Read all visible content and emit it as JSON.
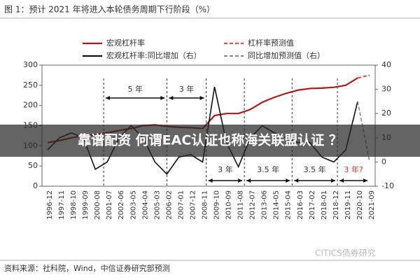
{
  "chart_data": {
    "type": "line",
    "title": "图 1：预计 2021 年将进入本轮债务周期下行阶段（%）",
    "categories": [
      "1996-12",
      "1997-11",
      "1998-10",
      "1999-09",
      "2000-08",
      "2001-07",
      "2002-06",
      "2003-05",
      "2004-04",
      "2005-03",
      "2006-02",
      "2007-01",
      "2007-12",
      "2008-11",
      "2009-10",
      "2010-09",
      "2011-08",
      "2012-07",
      "2013-06",
      "2014-05",
      "2015-04",
      "2016-03",
      "2017-02",
      "2018-01",
      "2018-12",
      "2019-11",
      "2020-10",
      "2021-09"
    ],
    "series": [
      {
        "name": "宏观杠杆率",
        "color": "#a61c1c",
        "dash": false,
        "axis": "y",
        "values": [
          108,
          113,
          120,
          125,
          128,
          132,
          138,
          143,
          150,
          152,
          148,
          146,
          145,
          143,
          175,
          180,
          180,
          190,
          208,
          220,
          230,
          238,
          242,
          243,
          245,
          250,
          268,
          null
        ]
      },
      {
        "name": "杠杆率预测值",
        "color": "#d9534f",
        "dash": true,
        "axis": "y",
        "values": [
          null,
          null,
          null,
          null,
          null,
          null,
          null,
          null,
          null,
          null,
          null,
          null,
          null,
          null,
          null,
          null,
          null,
          null,
          null,
          null,
          null,
          null,
          null,
          null,
          null,
          null,
          268,
          275
        ]
      },
      {
        "name": "宏观杠杆率:同比增加（右）",
        "color": "#111111",
        "dash": false,
        "axis": "y2",
        "values": [
          5,
          10,
          12,
          10,
          -3,
          0,
          10,
          15,
          10,
          0,
          -5,
          2,
          3,
          0,
          31,
          8,
          -2,
          10,
          15,
          12,
          10,
          8,
          8,
          2,
          0,
          5,
          25,
          null
        ]
      },
      {
        "name": "同比增加预测值（右）",
        "color": "#888888",
        "dash": true,
        "axis": "y2",
        "values": [
          null,
          null,
          null,
          null,
          null,
          null,
          null,
          null,
          null,
          null,
          null,
          null,
          null,
          null,
          null,
          null,
          null,
          null,
          null,
          null,
          null,
          null,
          null,
          null,
          null,
          null,
          25,
          0
        ]
      }
    ],
    "ylim": [
      0,
      300
    ],
    "yticks": [
      0,
      50,
      100,
      150,
      200,
      250,
      300
    ],
    "y2lim": [
      -10,
      40
    ],
    "y2ticks": [
      -10,
      0,
      10,
      20,
      30,
      40
    ],
    "annotations": [
      "5 年",
      "3 年",
      "3 年",
      "3.5 年",
      "3.5 年",
      "3 年?"
    ],
    "source": "资料来源：社科院，Wind，中信证券研究部预测",
    "watermark": "CITICS债券研究",
    "banner": "靠谱配资 何谓EAC认证也称海关联盟认证 ？"
  }
}
